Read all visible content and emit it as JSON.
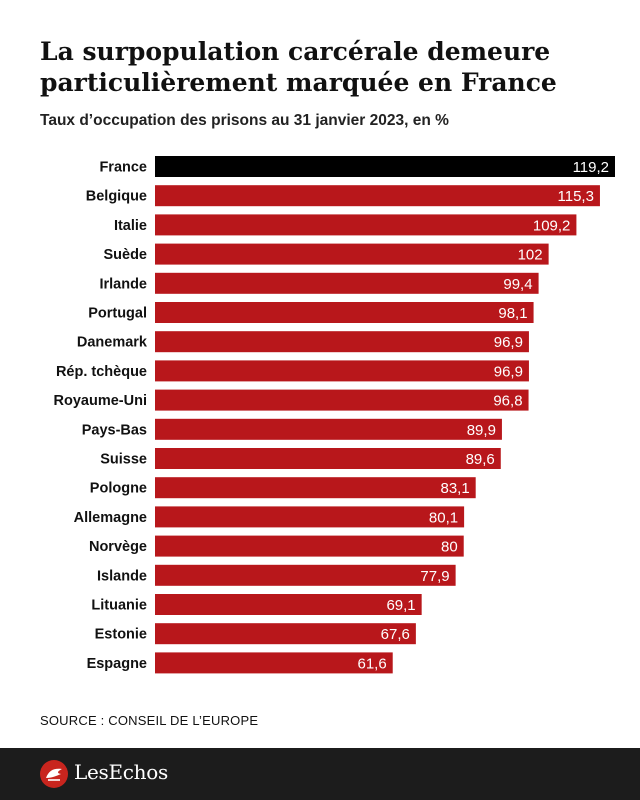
{
  "header": {
    "title": "La surpopulation carcérale demeure particulièrement marquée en France",
    "subtitle": "Taux d’occupation des prisons au 31 janvier 2023, en %"
  },
  "source": "SOURCE : CONSEIL DE L’EUROPE",
  "footer": {
    "brand": "LesEchos"
  },
  "colors": {
    "highlight": "#000000",
    "bar": "#b8171b",
    "footer_bg": "#1c1c1c",
    "logo_accent": "#c8251e"
  },
  "chart_data": {
    "type": "bar",
    "orientation": "horizontal",
    "title": "La surpopulation carcérale demeure particulièrement marquée en France",
    "subtitle": "Taux d’occupation des prisons au 31 janvier 2023, en %",
    "categories": [
      "France",
      "Belgique",
      "Italie",
      "Suède",
      "Irlande",
      "Portugal",
      "Danemark",
      "Rép. tchèque",
      "Royaume-Uni",
      "Pays-Bas",
      "Suisse",
      "Pologne",
      "Allemagne",
      "Norvège",
      "Islande",
      "Lituanie",
      "Estonie",
      "Espagne"
    ],
    "values": [
      119.2,
      115.3,
      109.2,
      102,
      99.4,
      98.1,
      96.9,
      96.9,
      96.8,
      89.9,
      89.6,
      83.1,
      80.1,
      80,
      77.9,
      69.1,
      67.6,
      61.6
    ],
    "value_labels": [
      "119,2",
      "115,3",
      "109,2",
      "102",
      "99,4",
      "98,1",
      "96,9",
      "96,9",
      "96,8",
      "89,9",
      "89,6",
      "83,1",
      "80,1",
      "80",
      "77,9",
      "69,1",
      "67,6",
      "61,6"
    ],
    "highlight": "France",
    "grid": false,
    "legend": "none",
    "xlim": [
      0,
      119.2
    ]
  }
}
